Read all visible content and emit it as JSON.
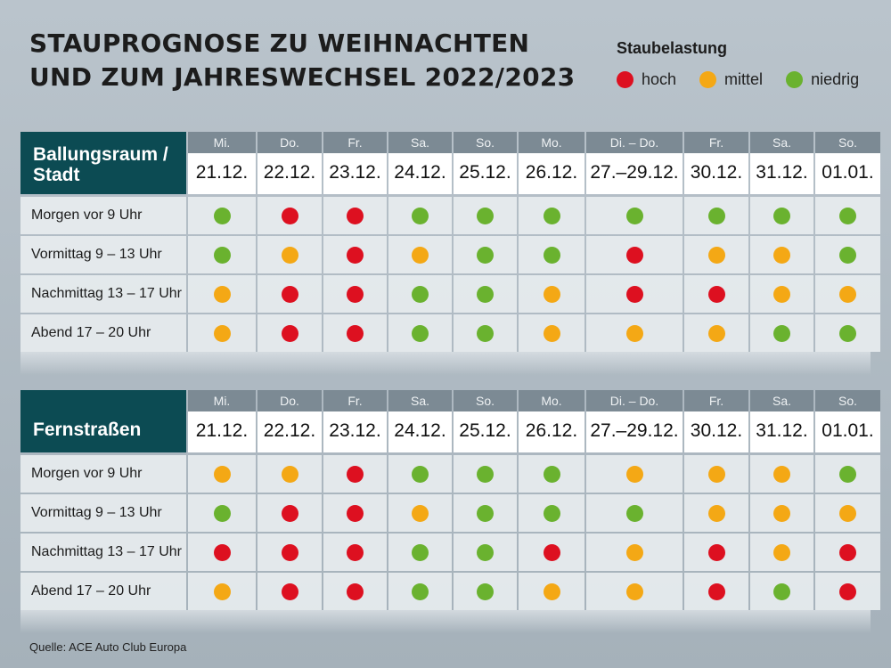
{
  "title": [
    "STAUPROGNOSE ZU WEIHNACHTEN",
    "UND ZUM JAHRESWECHSEL 2022/2023"
  ],
  "legend": {
    "title": "Staubelastung",
    "items": [
      {
        "key": "hoch",
        "label": "hoch",
        "color": "#dd1020"
      },
      {
        "key": "mittel",
        "label": "mittel",
        "color": "#f4a815"
      },
      {
        "key": "niedrig",
        "label": "niedrig",
        "color": "#6ab22f"
      }
    ]
  },
  "columns": [
    {
      "dow": "Mi.",
      "date": "21.12."
    },
    {
      "dow": "Do.",
      "date": "22.12."
    },
    {
      "dow": "Fr.",
      "date": "23.12."
    },
    {
      "dow": "Sa.",
      "date": "24.12."
    },
    {
      "dow": "So.",
      "date": "25.12."
    },
    {
      "dow": "Mo.",
      "date": "26.12."
    },
    {
      "dow": "Di. – Do.",
      "date": "27.–29.12."
    },
    {
      "dow": "Fr.",
      "date": "30.12."
    },
    {
      "dow": "Sa.",
      "date": "31.12."
    },
    {
      "dow": "So.",
      "date": "01.01."
    }
  ],
  "sections": [
    {
      "label": [
        "Ballungsraum /",
        "Stadt"
      ],
      "rows": [
        {
          "label": "Morgen vor 9 Uhr",
          "values": [
            "niedrig",
            "hoch",
            "hoch",
            "niedrig",
            "niedrig",
            "niedrig",
            "niedrig",
            "niedrig",
            "niedrig",
            "niedrig"
          ]
        },
        {
          "label": "Vormittag 9 – 13 Uhr",
          "values": [
            "niedrig",
            "mittel",
            "hoch",
            "mittel",
            "niedrig",
            "niedrig",
            "hoch",
            "mittel",
            "mittel",
            "niedrig"
          ]
        },
        {
          "label": "Nachmittag 13 – 17 Uhr",
          "values": [
            "mittel",
            "hoch",
            "hoch",
            "niedrig",
            "niedrig",
            "mittel",
            "hoch",
            "hoch",
            "mittel",
            "mittel"
          ]
        },
        {
          "label": "Abend 17 – 20 Uhr",
          "values": [
            "mittel",
            "hoch",
            "hoch",
            "niedrig",
            "niedrig",
            "mittel",
            "mittel",
            "mittel",
            "niedrig",
            "niedrig"
          ]
        }
      ]
    },
    {
      "label": [
        "Fernstraßen"
      ],
      "rows": [
        {
          "label": "Morgen vor 9 Uhr",
          "values": [
            "mittel",
            "mittel",
            "hoch",
            "niedrig",
            "niedrig",
            "niedrig",
            "mittel",
            "mittel",
            "mittel",
            "niedrig"
          ]
        },
        {
          "label": "Vormittag 9 – 13 Uhr",
          "values": [
            "niedrig",
            "hoch",
            "hoch",
            "mittel",
            "niedrig",
            "niedrig",
            "niedrig",
            "mittel",
            "mittel",
            "mittel"
          ]
        },
        {
          "label": "Nachmittag 13 – 17 Uhr",
          "values": [
            "hoch",
            "hoch",
            "hoch",
            "niedrig",
            "niedrig",
            "hoch",
            "mittel",
            "hoch",
            "mittel",
            "hoch"
          ]
        },
        {
          "label": "Abend 17 – 20 Uhr",
          "values": [
            "mittel",
            "hoch",
            "hoch",
            "niedrig",
            "niedrig",
            "mittel",
            "mittel",
            "hoch",
            "niedrig",
            "hoch"
          ]
        }
      ]
    }
  ],
  "source": "Quelle: ACE Auto Club Europa"
}
